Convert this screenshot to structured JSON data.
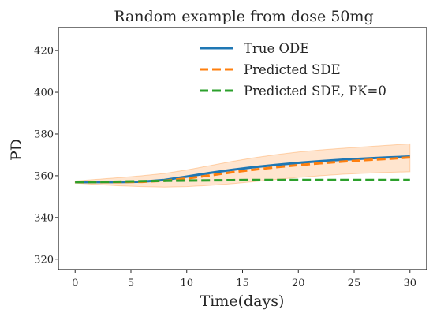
{
  "chart_data": {
    "type": "line",
    "title": "Random example from dose 50mg",
    "xlabel": "Time(days)",
    "ylabel": "PD",
    "xlim": [
      -1.5,
      31.5
    ],
    "ylim": [
      315,
      431
    ],
    "xticks": [
      0,
      5,
      10,
      15,
      20,
      25,
      30
    ],
    "yticks": [
      320,
      340,
      360,
      380,
      400,
      420
    ],
    "grid": false,
    "legend_position": "top-right",
    "series": [
      {
        "name": "True ODE",
        "style": "solid",
        "color": "#1f77b4",
        "x": [
          0,
          2,
          4,
          6,
          8,
          10,
          12,
          14,
          16,
          18,
          20,
          22,
          24,
          26,
          28,
          30
        ],
        "y": [
          357,
          357,
          357,
          357.2,
          358,
          359.6,
          361.3,
          362.8,
          364.1,
          365.2,
          366.2,
          367,
          367.7,
          368.3,
          368.8,
          369.2
        ]
      },
      {
        "name": "Predicted SDE",
        "style": "dashed",
        "color": "#ff7f0e",
        "x": [
          0,
          2,
          4,
          6,
          8,
          10,
          12,
          14,
          16,
          18,
          20,
          22,
          24,
          26,
          28,
          30
        ],
        "y": [
          357,
          357,
          357,
          357.1,
          357.6,
          358.7,
          360.1,
          361.6,
          362.9,
          364.1,
          365.1,
          366,
          366.8,
          367.5,
          368.1,
          368.8
        ]
      },
      {
        "name": "Predicted SDE, PK=0",
        "style": "dashed",
        "color": "#2ca02c",
        "x": [
          0,
          2,
          4,
          6,
          8,
          10,
          12,
          14,
          16,
          18,
          20,
          22,
          24,
          26,
          28,
          30
        ],
        "y": [
          357,
          357,
          357.2,
          357.4,
          357.6,
          357.7,
          357.8,
          357.9,
          358,
          358,
          358,
          358,
          358,
          358,
          358,
          358
        ]
      }
    ],
    "band": {
      "series": "Predicted SDE",
      "color": "#ff7f0e",
      "opacity": 0.2,
      "x": [
        0,
        2,
        4,
        6,
        8,
        10,
        12,
        14,
        16,
        18,
        20,
        22,
        24,
        26,
        28,
        30
      ],
      "lower": [
        356.5,
        355.8,
        355.2,
        354.8,
        354.6,
        354.8,
        355.4,
        356.2,
        357.2,
        358.2,
        359.2,
        360,
        360.7,
        361.2,
        361.6,
        361.9
      ],
      "upper": [
        357.5,
        358.3,
        359.1,
        360,
        361.1,
        362.8,
        364.8,
        366.8,
        368.6,
        370.1,
        371.4,
        372.4,
        373.2,
        373.9,
        374.6,
        375.3
      ]
    }
  }
}
